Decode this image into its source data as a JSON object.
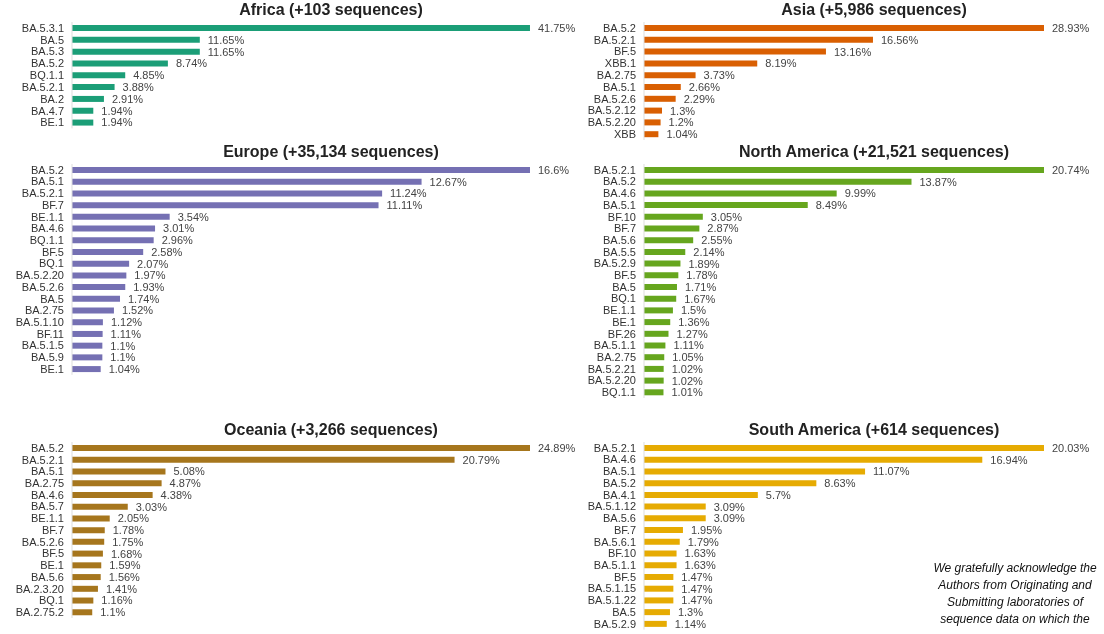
{
  "chart_data": [
    {
      "type": "bar",
      "orientation": "horizontal",
      "title": "Africa (+103 sequences)",
      "categories": [
        "BA.5.3.1",
        "BA.5",
        "BA.5.3",
        "BA.5.2",
        "BQ.1.1",
        "BA.5.2.1",
        "BA.2",
        "BA.4.7",
        "BE.1"
      ],
      "values": [
        41.75,
        11.65,
        11.65,
        8.74,
        4.85,
        3.88,
        2.91,
        1.94,
        1.94
      ],
      "value_labels": [
        "41.75%",
        "11.65%",
        "11.65%",
        "8.74%",
        "4.85%",
        "3.88%",
        "2.91%",
        "1.94%",
        "1.94%"
      ],
      "color": "#1b9e77"
    },
    {
      "type": "bar",
      "orientation": "horizontal",
      "title": "Asia (+5,986 sequences)",
      "categories": [
        "BA.5.2",
        "BA.5.2.1",
        "BF.5",
        "XBB.1",
        "BA.2.75",
        "BA.5.1",
        "BA.5.2.6",
        "BA.5.2.12",
        "BA.5.2.20",
        "XBB"
      ],
      "values": [
        28.93,
        16.56,
        13.16,
        8.19,
        3.73,
        2.66,
        2.29,
        1.3,
        1.2,
        1.04
      ],
      "value_labels": [
        "28.93%",
        "16.56%",
        "13.16%",
        "8.19%",
        "3.73%",
        "2.66%",
        "2.29%",
        "1.3%",
        "1.2%",
        "1.04%"
      ],
      "color": "#d95f02"
    },
    {
      "type": "bar",
      "orientation": "horizontal",
      "title": "Europe (+35,134 sequences)",
      "categories": [
        "BA.5.2",
        "BA.5.1",
        "BA.5.2.1",
        "BF.7",
        "BE.1.1",
        "BA.4.6",
        "BQ.1.1",
        "BF.5",
        "BQ.1",
        "BA.5.2.20",
        "BA.5.2.6",
        "BA.5",
        "BA.2.75",
        "BA.5.1.10",
        "BF.11",
        "BA.5.1.5",
        "BA.5.9",
        "BE.1"
      ],
      "values": [
        16.6,
        12.67,
        11.24,
        11.11,
        3.54,
        3.01,
        2.96,
        2.58,
        2.07,
        1.97,
        1.93,
        1.74,
        1.52,
        1.12,
        1.11,
        1.1,
        1.1,
        1.04
      ],
      "value_labels": [
        "16.6%",
        "12.67%",
        "11.24%",
        "11.11%",
        "3.54%",
        "3.01%",
        "2.96%",
        "2.58%",
        "2.07%",
        "1.97%",
        "1.93%",
        "1.74%",
        "1.52%",
        "1.12%",
        "1.11%",
        "1.1%",
        "1.1%",
        "1.04%"
      ],
      "color": "#7570b3"
    },
    {
      "type": "bar",
      "orientation": "horizontal",
      "title": "North America (+21,521 sequences)",
      "categories": [
        "BA.5.2.1",
        "BA.5.2",
        "BA.4.6",
        "BA.5.1",
        "BF.10",
        "BF.7",
        "BA.5.6",
        "BA.5.5",
        "BA.5.2.9",
        "BF.5",
        "BA.5",
        "BQ.1",
        "BE.1.1",
        "BE.1",
        "BF.26",
        "BA.5.1.1",
        "BA.2.75",
        "BA.5.2.21",
        "BA.5.2.20",
        "BQ.1.1"
      ],
      "values": [
        20.74,
        13.87,
        9.99,
        8.49,
        3.05,
        2.87,
        2.55,
        2.14,
        1.89,
        1.78,
        1.71,
        1.67,
        1.5,
        1.36,
        1.27,
        1.11,
        1.05,
        1.02,
        1.02,
        1.01
      ],
      "value_labels": [
        "20.74%",
        "13.87%",
        "9.99%",
        "8.49%",
        "3.05%",
        "2.87%",
        "2.55%",
        "2.14%",
        "1.89%",
        "1.78%",
        "1.71%",
        "1.67%",
        "1.5%",
        "1.36%",
        "1.27%",
        "1.11%",
        "1.05%",
        "1.02%",
        "1.02%",
        "1.01%"
      ],
      "color": "#66a61e"
    },
    {
      "type": "bar",
      "orientation": "horizontal",
      "title": "Oceania (+3,266 sequences)",
      "categories": [
        "BA.5.2",
        "BA.5.2.1",
        "BA.5.1",
        "BA.2.75",
        "BA.4.6",
        "BA.5.7",
        "BE.1.1",
        "BF.7",
        "BA.5.2.6",
        "BF.5",
        "BE.1",
        "BA.5.6",
        "BA.2.3.20",
        "BQ.1",
        "BA.2.75.2"
      ],
      "values": [
        24.89,
        20.79,
        5.08,
        4.87,
        4.38,
        3.03,
        2.05,
        1.78,
        1.75,
        1.68,
        1.59,
        1.56,
        1.41,
        1.16,
        1.1
      ],
      "value_labels": [
        "24.89%",
        "20.79%",
        "5.08%",
        "4.87%",
        "4.38%",
        "3.03%",
        "2.05%",
        "1.78%",
        "1.75%",
        "1.68%",
        "1.59%",
        "1.56%",
        "1.41%",
        "1.16%",
        "1.1%"
      ],
      "color": "#a6761d"
    },
    {
      "type": "bar",
      "orientation": "horizontal",
      "title": "South America (+614 sequences)",
      "categories": [
        "BA.5.2.1",
        "BA.4.6",
        "BA.5.1",
        "BA.5.2",
        "BA.4.1",
        "BA.5.1.12",
        "BA.5.6",
        "BF.7",
        "BA.5.6.1",
        "BF.10",
        "BA.5.1.1",
        "BF.5",
        "BA.5.1.15",
        "BA.5.1.22",
        "BA.5",
        "BA.5.2.9"
      ],
      "values": [
        20.03,
        16.94,
        11.07,
        8.63,
        5.7,
        3.09,
        3.09,
        1.95,
        1.79,
        1.63,
        1.63,
        1.47,
        1.47,
        1.47,
        1.3,
        1.14
      ],
      "value_labels": [
        "20.03%",
        "16.94%",
        "11.07%",
        "8.63%",
        "5.7%",
        "3.09%",
        "3.09%",
        "1.95%",
        "1.79%",
        "1.63%",
        "1.63%",
        "1.47%",
        "1.47%",
        "1.47%",
        "1.3%",
        "1.14%"
      ],
      "color": "#e6ab02",
      "annotations": [
        "We gratefully acknowledge the Authors from Originating and Submitting laboratories of sequence data on which the"
      ]
    }
  ]
}
